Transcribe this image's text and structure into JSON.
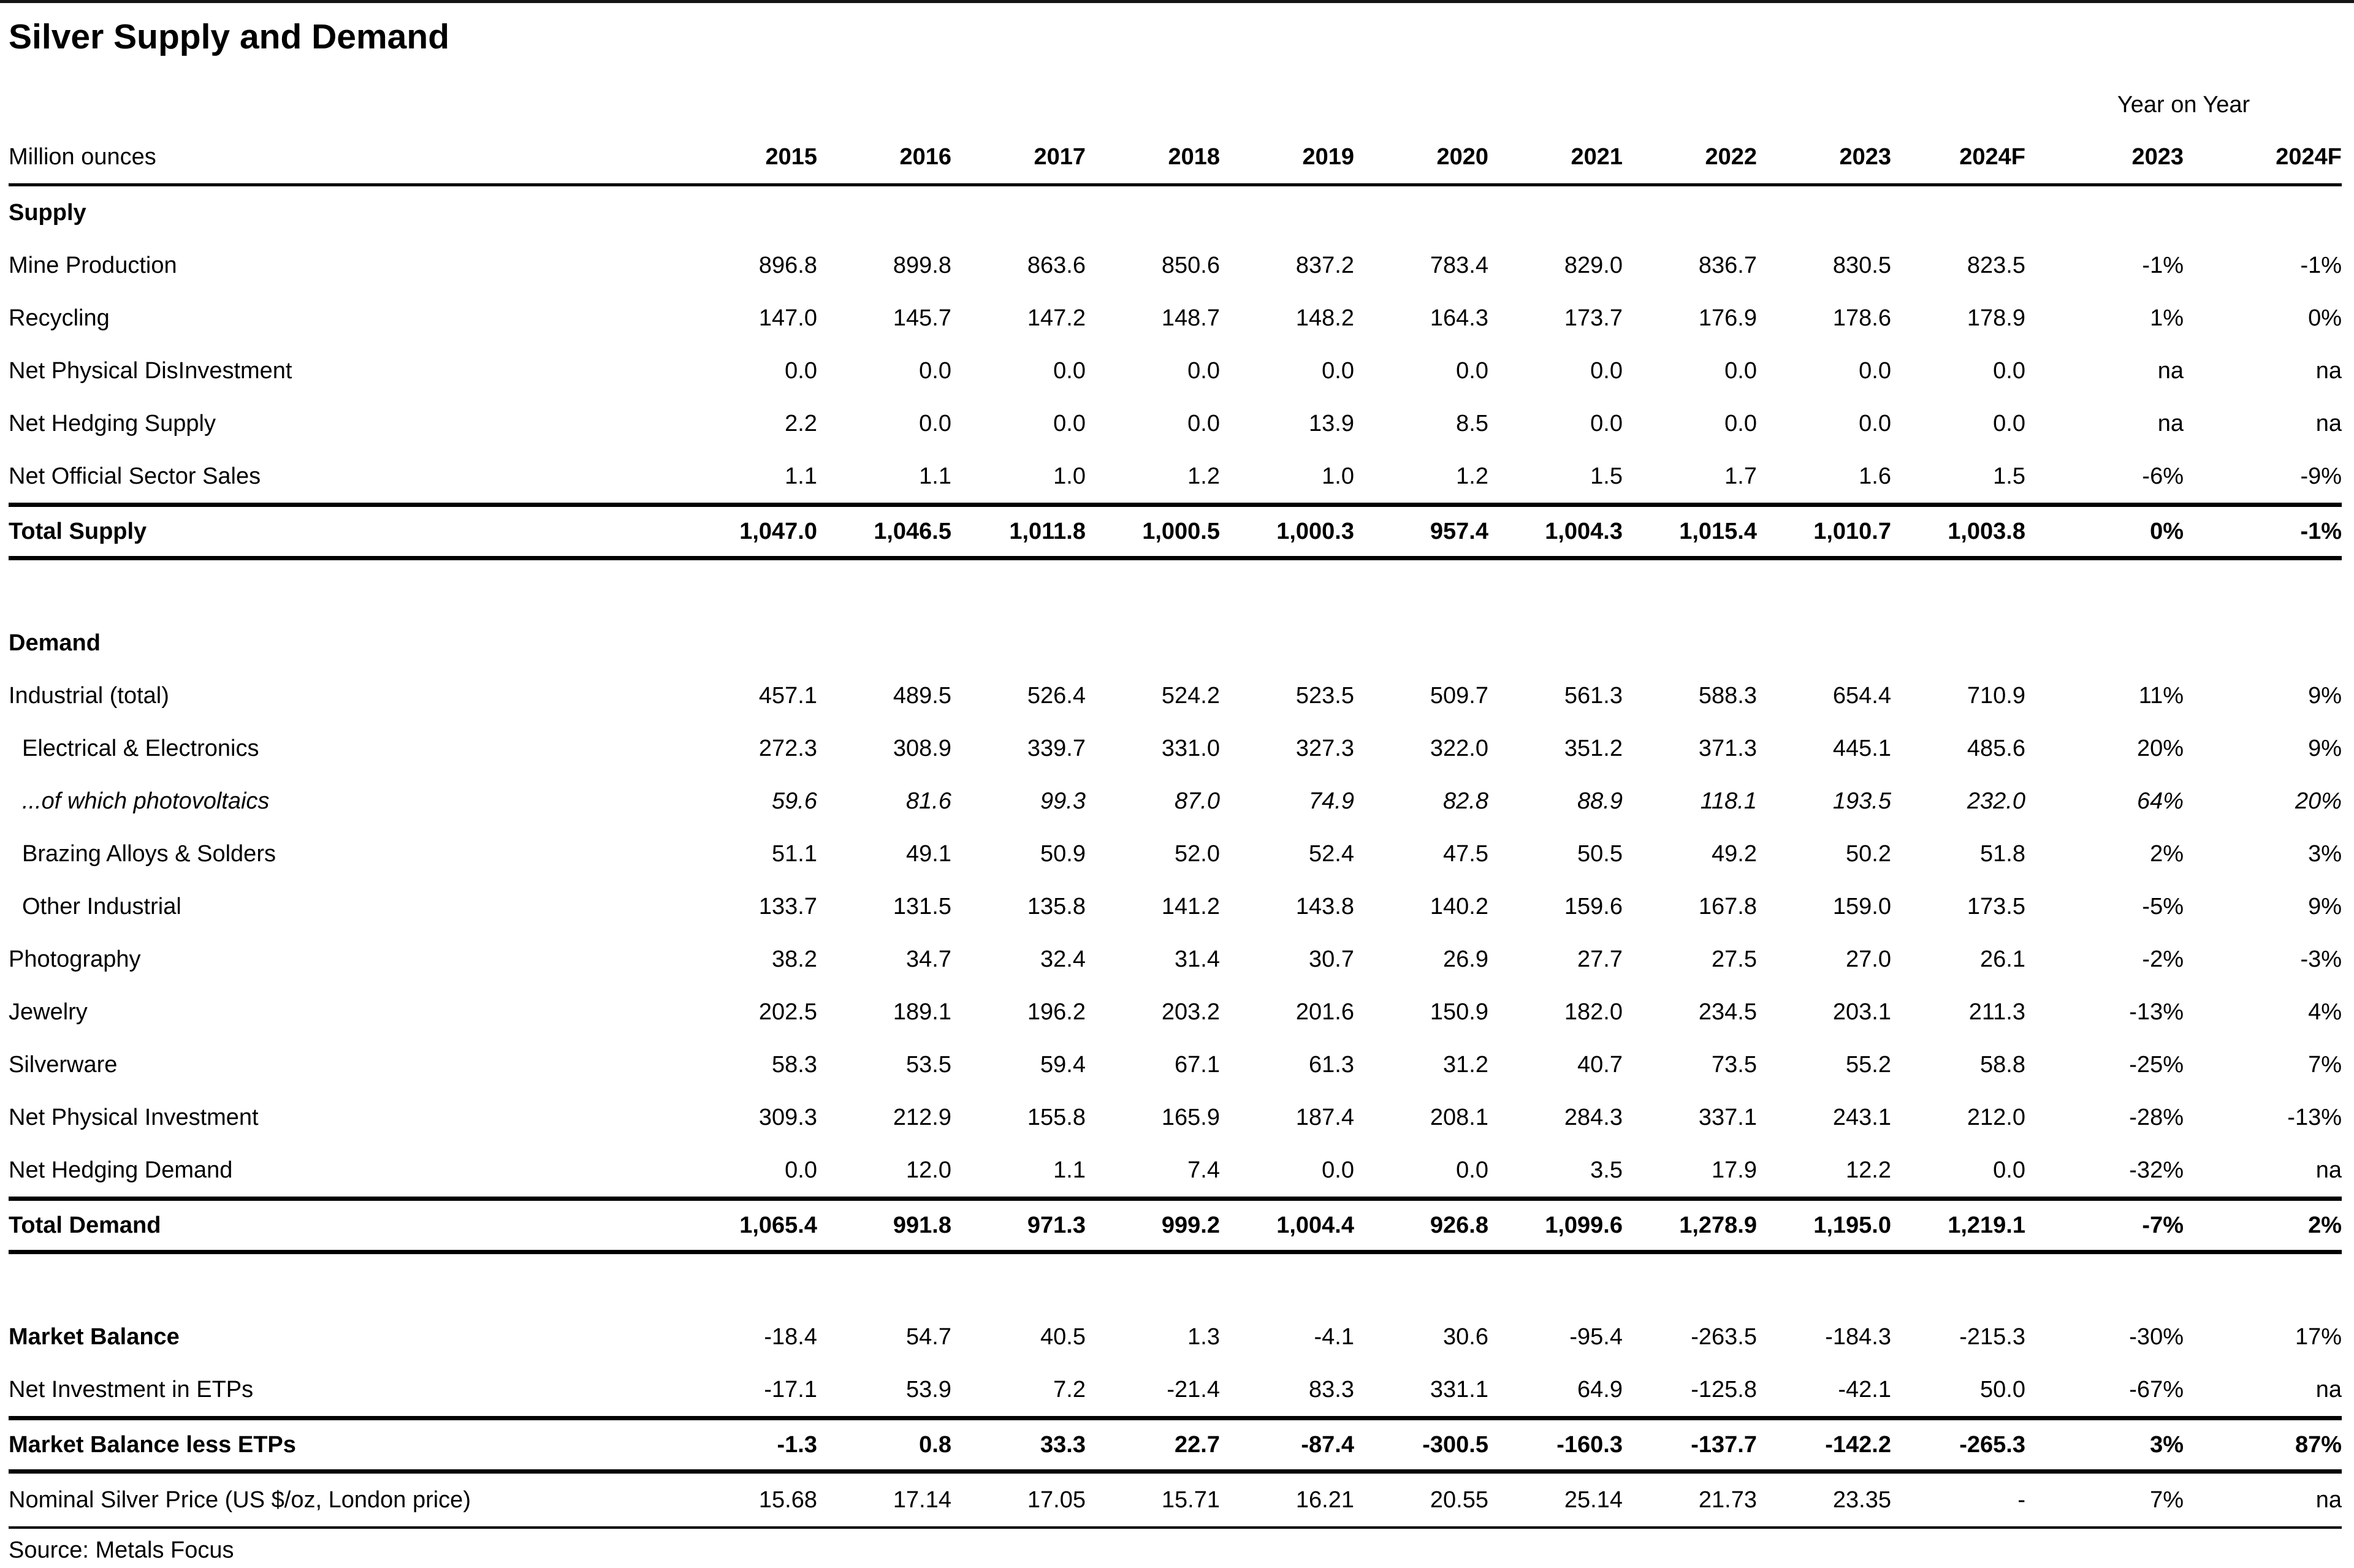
{
  "title": "Silver Supply and Demand",
  "unit_label": "Million ounces",
  "yoy_label": "Year on Year",
  "source": "Source: Metals Focus",
  "year_columns": [
    "2015",
    "2016",
    "2017",
    "2018",
    "2019",
    "2020",
    "2021",
    "2022",
    "2023",
    "2024F"
  ],
  "yoy_columns": [
    "2023",
    "2024F"
  ],
  "rows": [
    {
      "type": "section",
      "label": "Supply"
    },
    {
      "type": "data",
      "label": "Mine Production",
      "values": [
        "896.8",
        "899.8",
        "863.6",
        "850.6",
        "837.2",
        "783.4",
        "829.0",
        "836.7",
        "830.5",
        "823.5"
      ],
      "yoy": [
        "-1%",
        "-1%"
      ]
    },
    {
      "type": "data",
      "label": "Recycling",
      "values": [
        "147.0",
        "145.7",
        "147.2",
        "148.7",
        "148.2",
        "164.3",
        "173.7",
        "176.9",
        "178.6",
        "178.9"
      ],
      "yoy": [
        "1%",
        "0%"
      ]
    },
    {
      "type": "data",
      "label": "Net Physical DisInvestment",
      "values": [
        "0.0",
        "0.0",
        "0.0",
        "0.0",
        "0.0",
        "0.0",
        "0.0",
        "0.0",
        "0.0",
        "0.0"
      ],
      "yoy": [
        "na",
        "na"
      ]
    },
    {
      "type": "data",
      "label": "Net Hedging Supply",
      "values": [
        "2.2",
        "0.0",
        "0.0",
        "0.0",
        "13.9",
        "8.5",
        "0.0",
        "0.0",
        "0.0",
        "0.0"
      ],
      "yoy": [
        "na",
        "na"
      ]
    },
    {
      "type": "data",
      "label": "Net Official Sector Sales",
      "values": [
        "1.1",
        "1.1",
        "1.0",
        "1.2",
        "1.0",
        "1.2",
        "1.5",
        "1.7",
        "1.6",
        "1.5"
      ],
      "yoy": [
        "-6%",
        "-9%"
      ]
    },
    {
      "type": "total",
      "label": "Total Supply",
      "values": [
        "1,047.0",
        "1,046.5",
        "1,011.8",
        "1,000.5",
        "1,000.3",
        "957.4",
        "1,004.3",
        "1,015.4",
        "1,010.7",
        "1,003.8"
      ],
      "yoy": [
        "0%",
        "-1%"
      ]
    },
    {
      "type": "spacer"
    },
    {
      "type": "section",
      "label": "Demand"
    },
    {
      "type": "data",
      "label": "Industrial (total)",
      "values": [
        "457.1",
        "489.5",
        "526.4",
        "524.2",
        "523.5",
        "509.7",
        "561.3",
        "588.3",
        "654.4",
        "710.9"
      ],
      "yoy": [
        "11%",
        "9%"
      ]
    },
    {
      "type": "data",
      "indent": true,
      "label": "Electrical & Electronics",
      "values": [
        "272.3",
        "308.9",
        "339.7",
        "331.0",
        "327.3",
        "322.0",
        "351.2",
        "371.3",
        "445.1",
        "485.6"
      ],
      "yoy": [
        "20%",
        "9%"
      ]
    },
    {
      "type": "data",
      "indent": true,
      "italic": true,
      "label": "...of which photovoltaics",
      "values": [
        "59.6",
        "81.6",
        "99.3",
        "87.0",
        "74.9",
        "82.8",
        "88.9",
        "118.1",
        "193.5",
        "232.0"
      ],
      "yoy": [
        "64%",
        "20%"
      ]
    },
    {
      "type": "data",
      "indent": true,
      "label": "Brazing Alloys & Solders",
      "values": [
        "51.1",
        "49.1",
        "50.9",
        "52.0",
        "52.4",
        "47.5",
        "50.5",
        "49.2",
        "50.2",
        "51.8"
      ],
      "yoy": [
        "2%",
        "3%"
      ]
    },
    {
      "type": "data",
      "indent": true,
      "label": "Other Industrial",
      "values": [
        "133.7",
        "131.5",
        "135.8",
        "141.2",
        "143.8",
        "140.2",
        "159.6",
        "167.8",
        "159.0",
        "173.5"
      ],
      "yoy": [
        "-5%",
        "9%"
      ]
    },
    {
      "type": "data",
      "label": "Photography",
      "values": [
        "38.2",
        "34.7",
        "32.4",
        "31.4",
        "30.7",
        "26.9",
        "27.7",
        "27.5",
        "27.0",
        "26.1"
      ],
      "yoy": [
        "-2%",
        "-3%"
      ]
    },
    {
      "type": "data",
      "label": "Jewelry",
      "values": [
        "202.5",
        "189.1",
        "196.2",
        "203.2",
        "201.6",
        "150.9",
        "182.0",
        "234.5",
        "203.1",
        "211.3"
      ],
      "yoy": [
        "-13%",
        "4%"
      ]
    },
    {
      "type": "data",
      "label": "Silverware",
      "values": [
        "58.3",
        "53.5",
        "59.4",
        "67.1",
        "61.3",
        "31.2",
        "40.7",
        "73.5",
        "55.2",
        "58.8"
      ],
      "yoy": [
        "-25%",
        "7%"
      ]
    },
    {
      "type": "data",
      "label": "Net Physical Investment",
      "values": [
        "309.3",
        "212.9",
        "155.8",
        "165.9",
        "187.4",
        "208.1",
        "284.3",
        "337.1",
        "243.1",
        "212.0"
      ],
      "yoy": [
        "-28%",
        "-13%"
      ]
    },
    {
      "type": "data",
      "label": "Net Hedging Demand",
      "values": [
        "0.0",
        "12.0",
        "1.1",
        "7.4",
        "0.0",
        "0.0",
        "3.5",
        "17.9",
        "12.2",
        "0.0"
      ],
      "yoy": [
        "-32%",
        "na"
      ]
    },
    {
      "type": "total",
      "label": "Total Demand",
      "values": [
        "1,065.4",
        "991.8",
        "971.3",
        "999.2",
        "1,004.4",
        "926.8",
        "1,099.6",
        "1,278.9",
        "1,195.0",
        "1,219.1"
      ],
      "yoy": [
        "-7%",
        "2%"
      ]
    },
    {
      "type": "spacer"
    },
    {
      "type": "data",
      "label_bold": true,
      "label": "Market Balance",
      "values": [
        "-18.4",
        "54.7",
        "40.5",
        "1.3",
        "-4.1",
        "30.6",
        "-95.4",
        "-263.5",
        "-184.3",
        "-215.3"
      ],
      "yoy": [
        "-30%",
        "17%"
      ]
    },
    {
      "type": "data",
      "label": "Net Investment in ETPs",
      "values": [
        "-17.1",
        "53.9",
        "7.2",
        "-21.4",
        "83.3",
        "331.1",
        "64.9",
        "-125.8",
        "-42.1",
        "50.0"
      ],
      "yoy": [
        "-67%",
        "na"
      ]
    },
    {
      "type": "total",
      "label": "Market Balance less ETPs",
      "values": [
        "-1.3",
        "0.8",
        "33.3",
        "22.7",
        "-87.4",
        "-300.5",
        "-160.3",
        "-137.7",
        "-142.2",
        "-265.3"
      ],
      "yoy": [
        "3%",
        "87%"
      ]
    },
    {
      "type": "price",
      "label": "Nominal Silver Price (US $/oz, London price)",
      "values": [
        "15.68",
        "17.14",
        "17.05",
        "15.71",
        "16.21",
        "20.55",
        "25.14",
        "21.73",
        "23.35",
        "-"
      ],
      "yoy": [
        "7%",
        "na"
      ]
    }
  ]
}
